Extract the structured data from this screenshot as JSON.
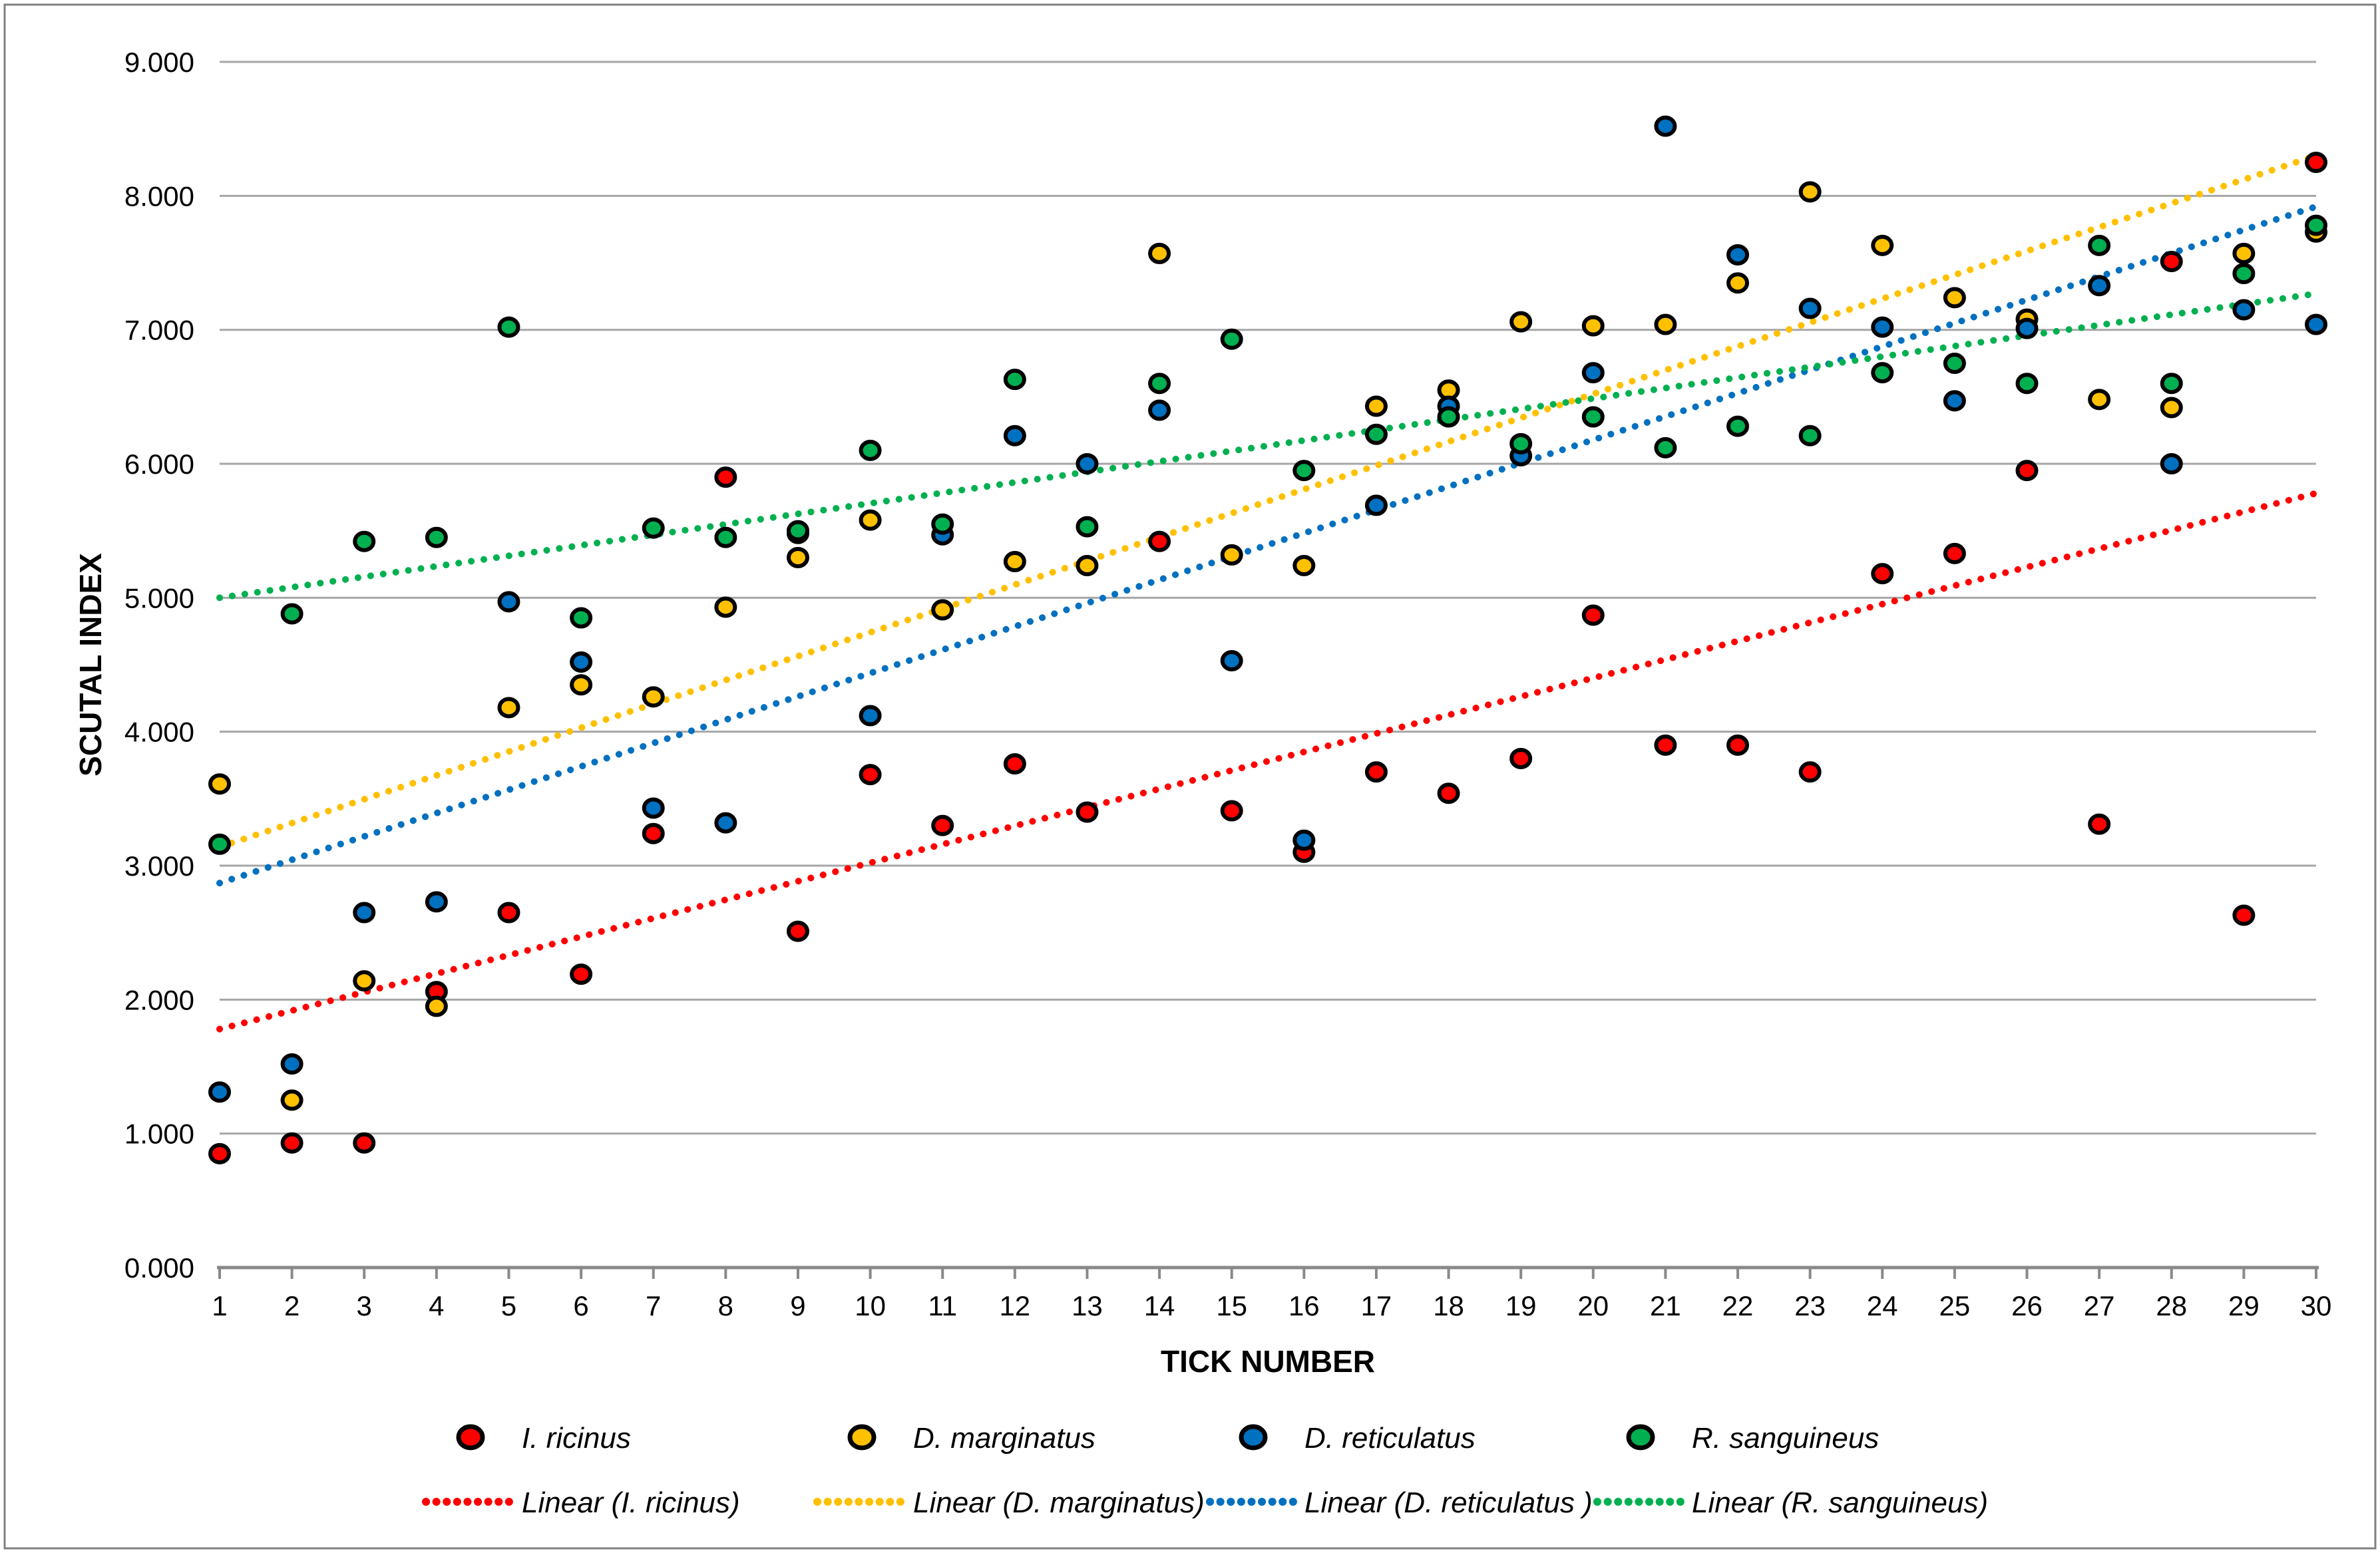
{
  "chart_data": {
    "type": "scatter",
    "title": "",
    "xlabel": "TICK NUMBER",
    "ylabel": "SCUTAL INDEX",
    "grid": true,
    "legend_position": "bottom",
    "xlim": [
      1,
      30
    ],
    "ylim": [
      0,
      9
    ],
    "y_tick_labels": [
      "0.000",
      "1.000",
      "2.000",
      "3.000",
      "4.000",
      "5.000",
      "6.000",
      "7.000",
      "8.000",
      "9.000"
    ],
    "categories": [
      1,
      2,
      3,
      4,
      5,
      6,
      7,
      8,
      9,
      10,
      11,
      12,
      13,
      14,
      15,
      16,
      17,
      18,
      19,
      20,
      21,
      22,
      23,
      24,
      25,
      26,
      27,
      28,
      29,
      30
    ],
    "series": [
      {
        "name": "I. ricinus",
        "color": "#FF0000",
        "values": [
          0.85,
          0.93,
          0.93,
          2.06,
          2.65,
          2.19,
          3.24,
          5.9,
          2.51,
          3.68,
          3.3,
          3.76,
          3.4,
          5.42,
          3.41,
          3.1,
          3.7,
          3.54,
          3.8,
          4.87,
          3.9,
          3.9,
          3.7,
          5.18,
          5.33,
          5.95,
          3.31,
          7.51,
          2.63,
          8.25
        ]
      },
      {
        "name": "D. marginatus",
        "color": "#FFC000",
        "values": [
          3.61,
          1.25,
          2.14,
          1.95,
          4.18,
          4.35,
          4.26,
          4.93,
          5.3,
          5.58,
          4.91,
          5.27,
          5.24,
          7.57,
          5.32,
          5.24,
          6.43,
          6.55,
          7.06,
          7.03,
          7.04,
          7.35,
          8.03,
          7.63,
          7.24,
          7.08,
          6.48,
          6.42,
          7.57,
          7.73
        ]
      },
      {
        "name": "D. reticulatus",
        "color": "#0070C0",
        "values": [
          1.31,
          1.52,
          2.65,
          2.73,
          4.97,
          4.52,
          3.43,
          3.32,
          5.48,
          4.12,
          5.47,
          6.21,
          6.0,
          6.4,
          4.53,
          3.19,
          5.69,
          6.43,
          6.06,
          6.68,
          8.52,
          7.56,
          7.16,
          7.02,
          6.47,
          7.01,
          7.33,
          6.0,
          7.15,
          7.04
        ]
      },
      {
        "name": "R. sanguineus",
        "color": "#00B050",
        "values": [
          3.16,
          4.88,
          5.42,
          5.45,
          7.02,
          4.85,
          5.52,
          5.45,
          5.5,
          6.1,
          5.55,
          6.63,
          5.53,
          6.6,
          6.93,
          5.95,
          6.22,
          6.35,
          6.15,
          6.35,
          6.12,
          6.28,
          6.21,
          6.68,
          6.75,
          6.6,
          7.63,
          6.6,
          7.42,
          7.78
        ]
      }
    ],
    "trendlines": [
      {
        "name": "Linear (I. ricinus)",
        "color": "#FF0000",
        "start": 1.78,
        "end": 5.78
      },
      {
        "name": "Linear (D. marginatus)",
        "color": "#FFC000",
        "start": 3.14,
        "end": 8.3
      },
      {
        "name": "Linear (D. reticulatus )",
        "color": "#0070C0",
        "start": 2.87,
        "end": 7.92
      },
      {
        "name": "Linear (R. sanguineus)",
        "color": "#00B050",
        "start": 5.0,
        "end": 7.27
      }
    ],
    "colors": {
      "gridline": "#A6A6A6",
      "axis": "#898989",
      "border": "#808080",
      "text": "#000000"
    }
  }
}
